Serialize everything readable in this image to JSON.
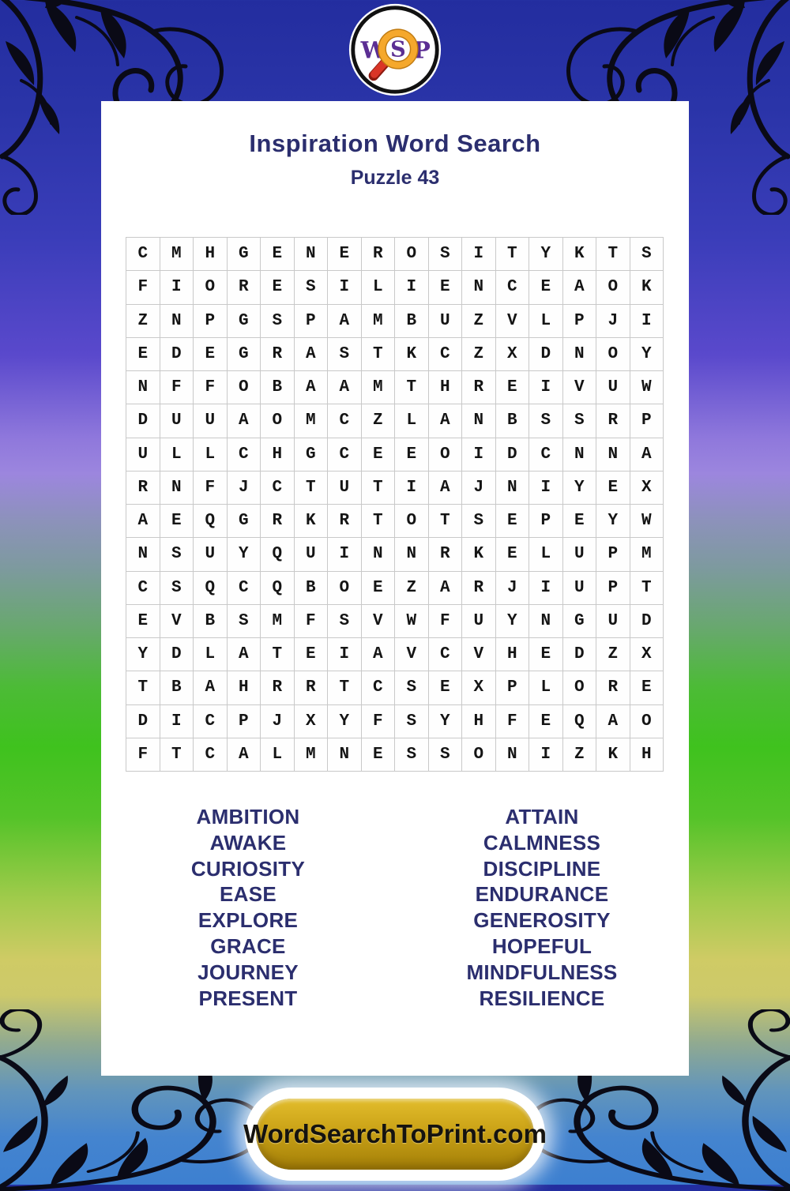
{
  "logo": {
    "letter_w": "W",
    "letter_s": "S",
    "letter_p": "P"
  },
  "header": {
    "title": "Inspiration Word Search",
    "subtitle": "Puzzle 43"
  },
  "grid": {
    "rows": [
      "CMHGENEROSITYKTS",
      "FIORESILIENCEAOK",
      "ZNPGSPAMBUZVLPJI",
      "EDEGRASTKCZXDNOY",
      "NFFOBAAMTHREIVUW",
      "DUUAOMCZLANBSSRP",
      "ULLCHGCEEOIDCNNA",
      "RNFJCTUTIAJNIYEX",
      "AEQGRKRTOTSEPEYW",
      "NSUYQUINNRKELUPM",
      "CSQCQBOEZARJIUPT",
      "EVBSMFSVWFUYNGUD",
      "YDLATEIAVCVHEDZX",
      "TBAHRRTCSEXPLORE",
      "DICPJXYFSYHFEQAO",
      "FTCALMNESSONIZKH"
    ]
  },
  "word_list": {
    "left": [
      "AMBITION",
      "AWAKE",
      "CURIOSITY",
      "EASE",
      "EXPLORE",
      "GRACE",
      "JOURNEY",
      "PRESENT"
    ],
    "right": [
      "ATTAIN",
      "CALMNESS",
      "DISCIPLINE",
      "ENDURANCE",
      "GENEROSITY",
      "HOPEFUL",
      "MINDFULNESS",
      "RESILIENCE"
    ]
  },
  "footer": {
    "site_label": "WordSearchToPrint.com"
  },
  "colors": {
    "title_navy": "#2b2e6e",
    "grid_letter": "#141414",
    "logo_purple": "#5b2e93",
    "magnifier_orange": "#f09f27",
    "handle_red": "#d32f22",
    "button_gold": "#cda519",
    "background_top_blue": "#2a34a8",
    "background_green": "#3fc21e",
    "background_yellow": "#cfcb65",
    "background_bottom_blue": "#3d80d0"
  }
}
